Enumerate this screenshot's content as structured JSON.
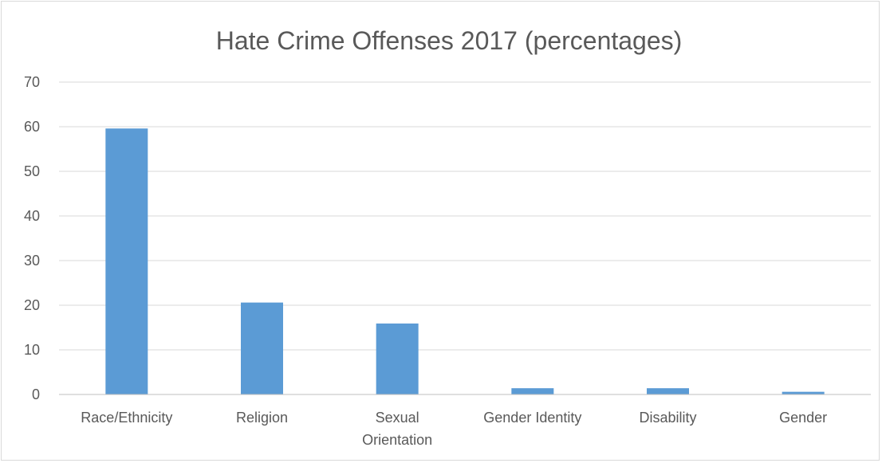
{
  "chart_data": {
    "type": "bar",
    "title": "Hate Crime Offenses 2017 (percentages)",
    "categories": [
      "Race/Ethnicity",
      "Religion",
      "Sexual Orientation",
      "Gender Identity",
      "Disability",
      "Gender"
    ],
    "category_lines": [
      [
        "Race/Ethnicity"
      ],
      [
        "Religion"
      ],
      [
        "Sexual",
        "Orientation"
      ],
      [
        "Gender Identity"
      ],
      [
        "Disability"
      ],
      [
        "Gender"
      ]
    ],
    "values": [
      59.6,
      20.6,
      15.9,
      1.4,
      1.4,
      0.6
    ],
    "ylim": [
      0,
      70
    ],
    "yticks": [
      0,
      10,
      20,
      30,
      40,
      50,
      60,
      70
    ],
    "grid": true,
    "legend": "none",
    "bar_color": "#5b9bd5"
  }
}
